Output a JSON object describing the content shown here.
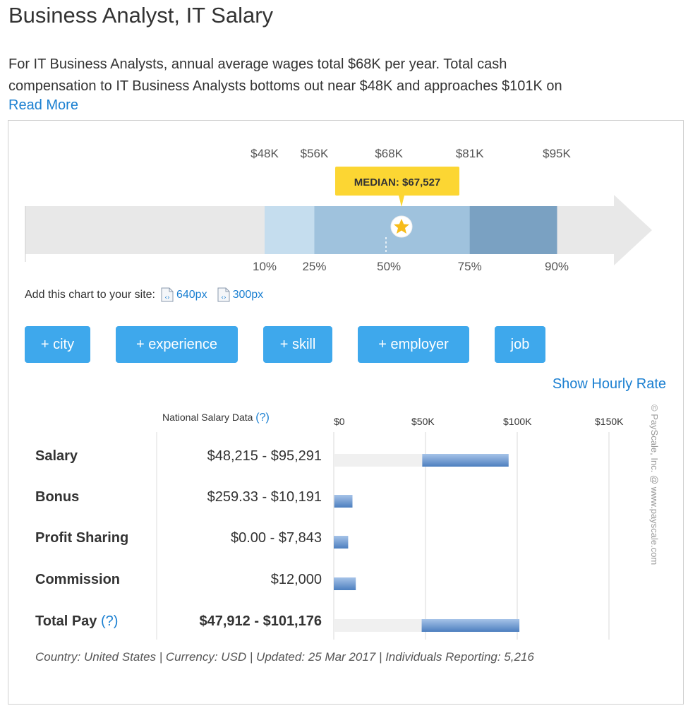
{
  "page": {
    "title": "Business Analyst, IT Salary",
    "description_line1": "For IT Business Analysts, annual average wages total $68K per year. Total cash",
    "description_line2": "compensation to IT Business Analysts bottoms out near $48K and approaches $101K on",
    "read_more": "Read More"
  },
  "chart_data": [
    {
      "type": "percentile-range",
      "percentiles": [
        "10%",
        "25%",
        "50%",
        "75%",
        "90%"
      ],
      "value_labels": [
        "$48K",
        "$56K",
        "$68K",
        "$81K",
        "$95K"
      ],
      "values": [
        48000,
        56000,
        68000,
        81000,
        95000
      ],
      "median_label": "MEDIAN: $67,527",
      "median_value": 67527
    },
    {
      "type": "bar",
      "orientation": "horizontal-range",
      "header": "National Salary Data",
      "header_help": "(?)",
      "xticks": [
        "$0",
        "$50K",
        "$100K",
        "$150K"
      ],
      "xtick_values": [
        0,
        50000,
        100000,
        150000
      ],
      "xlim": [
        0,
        150000
      ],
      "rows": [
        {
          "label": "Salary",
          "range_text": "$48,215 - $95,291",
          "low": 48215,
          "high": 95291,
          "bold": false
        },
        {
          "label": "Bonus",
          "range_text": "$259.33 - $10,191",
          "low": 259.33,
          "high": 10191,
          "bold": false
        },
        {
          "label": "Profit Sharing",
          "range_text": "$0.00 - $7,843",
          "low": 0,
          "high": 7843,
          "bold": false
        },
        {
          "label": "Commission",
          "range_text": "$12,000",
          "low": 0,
          "high": 12000,
          "bold": false
        },
        {
          "label": "Total Pay",
          "label_help": "(?)",
          "range_text": "$47,912 - $101,176",
          "low": 47912,
          "high": 101176,
          "bold": true
        }
      ]
    }
  ],
  "embed": {
    "label": "Add this chart to your site:",
    "link_640": "640px",
    "link_300": "300px"
  },
  "filters": [
    "+ city",
    "+ experience",
    "+ skill",
    "+ employer",
    "job"
  ],
  "hourly_link": "Show Hourly Rate",
  "footer_note": "Country: United States | Currency: USD | Updated: 25 Mar 2017 | Individuals Reporting: 5,216",
  "copyright": "© PayScale, Inc. @ www.payscale.com",
  "colors": {
    "accent_blue": "#1a7fd1",
    "button_blue": "#3ea8ec",
    "band_10_25": "#c5ddee",
    "band_25_75": "#9fc2dd",
    "band_75_90": "#7aa1c2",
    "arrow_gray": "#e8e8e8",
    "median_yellow": "#fcd633",
    "star_yellow": "#f7bc1a",
    "bar_blue": "#5c8fcf"
  }
}
